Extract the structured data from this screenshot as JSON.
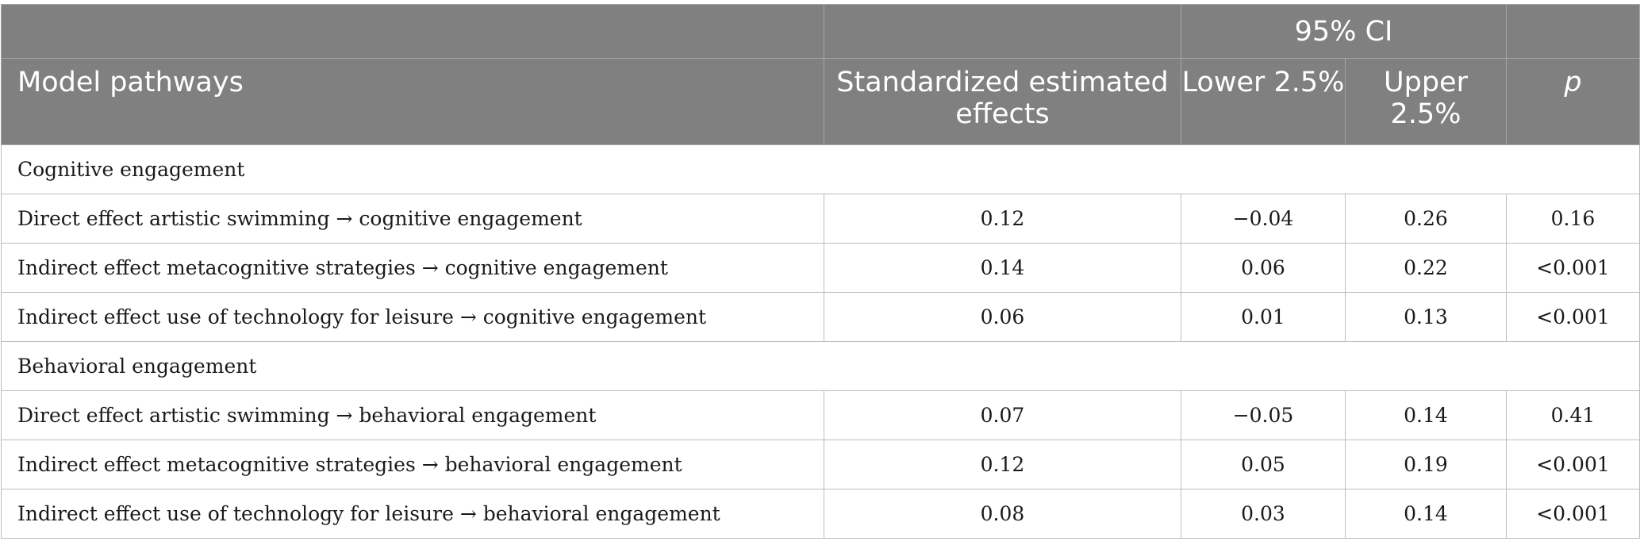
{
  "header": {
    "ci_group": "95% CI",
    "columns": [
      "Model pathways",
      "Standardized estimated effects",
      "Lower 2.5%",
      "Upper 2.5%",
      "p"
    ]
  },
  "sections": [
    {
      "title": "Cognitive engagement",
      "rows": [
        [
          "Direct effect artistic swimming → cognitive engagement",
          "0.12",
          "−0.04",
          "0.26",
          "0.16"
        ],
        [
          "Indirect effect metacognitive strategies → cognitive engagement",
          "0.14",
          "0.06",
          "0.22",
          "<0.001"
        ],
        [
          "Indirect effect use of technology for leisure → cognitive engagement",
          "0.06",
          "0.01",
          "0.13",
          "<0.001"
        ]
      ]
    },
    {
      "title": "Behavioral engagement",
      "rows": [
        [
          "Direct effect artistic swimming → behavioral engagement",
          "0.07",
          "−0.05",
          "0.14",
          "0.41"
        ],
        [
          "Indirect effect metacognitive strategies → behavioral engagement",
          "0.12",
          "0.05",
          "0.19",
          "<0.001"
        ],
        [
          "Indirect effect use of technology for leisure → behavioral engagement",
          "0.08",
          "0.03",
          "0.14",
          "<0.001"
        ]
      ]
    }
  ]
}
